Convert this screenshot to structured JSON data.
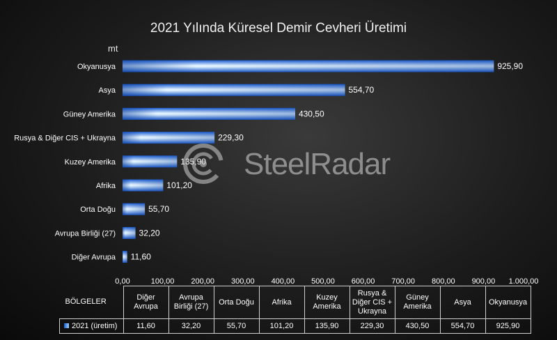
{
  "chart_data": {
    "type": "bar",
    "orientation": "horizontal",
    "title": "2021 Yılında Küresel Demir Cevheri Üretimi",
    "unit_label": "mt",
    "categories": [
      "Okyanusya",
      "Asya",
      "Güney Amerika",
      "Rusya & Diğer CIS + Ukrayna",
      "Kuzey Amerika",
      "Afrika",
      "Orta Doğu",
      "Avrupa Birliği (27)",
      "Diğer Avrupa"
    ],
    "series": [
      {
        "name": "2021 (üretim)",
        "values": [
          925.9,
          554.7,
          430.5,
          229.3,
          135.9,
          101.2,
          55.7,
          32.2,
          11.6
        ],
        "labels": [
          "925,90",
          "554,70",
          "430,50",
          "229,30",
          "135,90",
          "101,20",
          "55,70",
          "32,20",
          "11,60"
        ]
      }
    ],
    "xlim": [
      0,
      1000
    ],
    "x_ticks": [
      "0,00",
      "100,00",
      "200,00",
      "300,00",
      "400,00",
      "500,00",
      "600,00",
      "700,00",
      "800,00",
      "900,00",
      "1.000,00"
    ],
    "grid": false,
    "bar_color": "#2f7fe0",
    "data_table": {
      "header_label": "BÖLGELER",
      "columns": [
        [
          "Diğer",
          "Avrupa"
        ],
        [
          "Avrupa",
          "Birliği (27)"
        ],
        [
          "Orta Doğu"
        ],
        [
          "Afrika"
        ],
        [
          "Kuzey",
          "Amerika"
        ],
        [
          "Rusya &",
          "Diğer CIS +",
          "Ukrayna"
        ],
        [
          "Güney",
          "Amerika"
        ],
        [
          "Asya"
        ],
        [
          "Okyanusya"
        ]
      ],
      "row_label": "2021 (üretim)",
      "values": [
        "11,60",
        "32,20",
        "55,70",
        "101,20",
        "135,90",
        "229,30",
        "430,50",
        "554,70",
        "925,90"
      ]
    }
  },
  "watermark": {
    "text": "SteelRadar"
  }
}
